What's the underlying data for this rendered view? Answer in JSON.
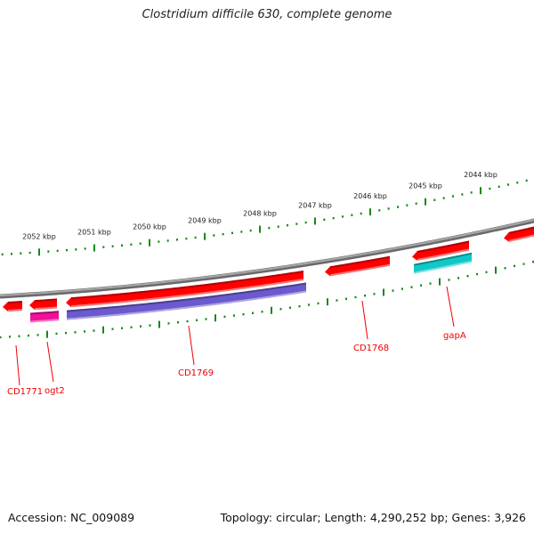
{
  "title": "Clostridium difficile 630, complete genome",
  "footer": {
    "accession": "Accession: NC_009089",
    "summary": "Topology: circular; Length: 4,290,252 bp; Genes: 3,926"
  },
  "tick_labels": [
    "2052 kbp",
    "2051 kbp",
    "2050 kbp",
    "2049 kbp",
    "2048 kbp",
    "2047 kbp",
    "2046 kbp",
    "2045 kbp",
    "2044 kbp"
  ],
  "gene_labels": [
    "CD1771",
    "ogt2",
    "CD1769",
    "CD1768",
    "gapA"
  ],
  "colors": {
    "backbone": "#808080",
    "ticks": "#138a13",
    "gene": "#ff0000",
    "ogt2_feature": "#ee1199",
    "cd1769_feature": "#6a5acd",
    "gapa_feature": "#10c8c8",
    "label": "#ee0000"
  }
}
